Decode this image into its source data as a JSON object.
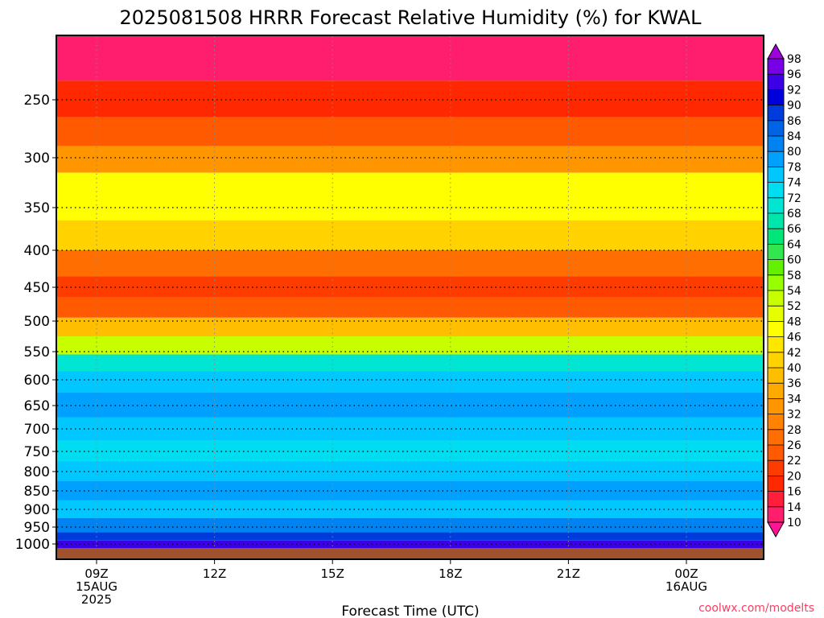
{
  "chart_data": {
    "type": "heatmap",
    "title": "2025081508 HRRR Forecast Relative Humidity (%) for KWAL",
    "xlabel": "Forecast Time (UTC)",
    "ylabel": "",
    "credit": "coolwx.com/modelts",
    "x_range_hours": [
      8,
      26
    ],
    "y_range_hpa": [
      1000,
      200
    ],
    "y_ticks": [
      250,
      300,
      350,
      400,
      450,
      500,
      550,
      600,
      650,
      700,
      750,
      800,
      850,
      900,
      950,
      1000
    ],
    "x_ticks": [
      {
        "hour": 9,
        "lines": [
          "09Z",
          "15AUG",
          "2025"
        ]
      },
      {
        "hour": 12,
        "lines": [
          "12Z"
        ]
      },
      {
        "hour": 15,
        "lines": [
          "15Z"
        ]
      },
      {
        "hour": 18,
        "lines": [
          "18Z"
        ]
      },
      {
        "hour": 21,
        "lines": [
          "21Z"
        ]
      },
      {
        "hour": 24,
        "lines": [
          "00Z",
          "16AUG"
        ]
      }
    ],
    "colorbar_levels": [
      10,
      14,
      16,
      20,
      22,
      26,
      28,
      32,
      34,
      36,
      40,
      42,
      46,
      48,
      52,
      54,
      58,
      60,
      64,
      66,
      68,
      72,
      74,
      78,
      80,
      84,
      86,
      90,
      92,
      96,
      98
    ],
    "colorbar_colors": [
      "#ff1493",
      "#ff1e6e",
      "#ff1e3c",
      "#ff2800",
      "#ff3c00",
      "#ff5a00",
      "#ff6e00",
      "#ff8200",
      "#ff9600",
      "#ffaa00",
      "#ffbe00",
      "#ffd200",
      "#ffe600",
      "#ffff00",
      "#e6ff00",
      "#c8ff00",
      "#96ff00",
      "#64f000",
      "#32e650",
      "#00e678",
      "#00e6aa",
      "#00e6d2",
      "#00dcf0",
      "#00c8ff",
      "#00a0ff",
      "#0082f0",
      "#0064e6",
      "#003cdc",
      "#0000dc",
      "#3c00e6",
      "#7800e6",
      "#a000dc"
    ],
    "rh_profile": [
      {
        "p": 220,
        "rh": 12
      },
      {
        "p": 250,
        "rh": 16
      },
      {
        "p": 280,
        "rh": 24
      },
      {
        "p": 300,
        "rh": 32
      },
      {
        "p": 330,
        "rh": 46
      },
      {
        "p": 350,
        "rh": 46
      },
      {
        "p": 380,
        "rh": 40
      },
      {
        "p": 420,
        "rh": 26
      },
      {
        "p": 450,
        "rh": 20
      },
      {
        "p": 480,
        "rh": 24
      },
      {
        "p": 510,
        "rh": 36
      },
      {
        "p": 540,
        "rh": 52
      },
      {
        "p": 570,
        "rh": 68
      },
      {
        "p": 600,
        "rh": 74
      },
      {
        "p": 650,
        "rh": 78
      },
      {
        "p": 700,
        "rh": 76
      },
      {
        "p": 750,
        "rh": 72
      },
      {
        "p": 800,
        "rh": 76
      },
      {
        "p": 850,
        "rh": 78
      },
      {
        "p": 900,
        "rh": 74
      },
      {
        "p": 950,
        "rh": 80
      },
      {
        "p": 980,
        "rh": 88
      },
      {
        "p": 1000,
        "rh": 92
      }
    ]
  }
}
